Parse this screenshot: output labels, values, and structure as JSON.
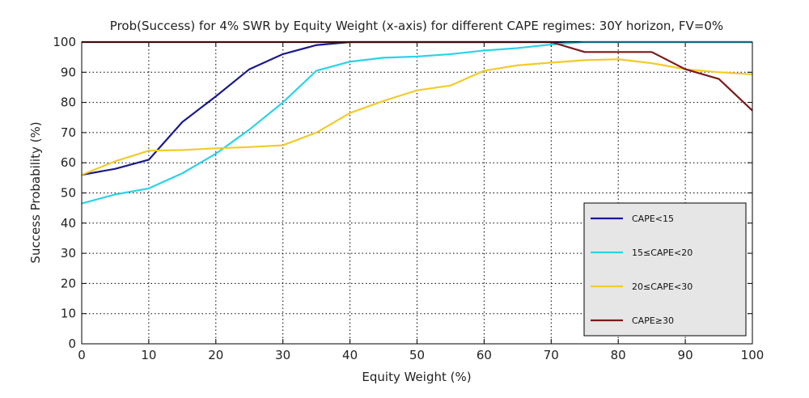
{
  "chart_data": {
    "type": "line",
    "title": "Prob(Success) for 4% SWR by Equity Weight (x-axis) for different CAPE regimes: 30Y horizon, FV=0%",
    "xlabel": "Equity Weight (%)",
    "ylabel": "Success Probability (%)",
    "xlim": [
      0,
      100
    ],
    "ylim": [
      0,
      100
    ],
    "xticks": [
      0,
      10,
      20,
      30,
      40,
      50,
      60,
      70,
      80,
      90,
      100
    ],
    "yticks": [
      0,
      10,
      20,
      30,
      40,
      50,
      60,
      70,
      80,
      90,
      100
    ],
    "grid": true,
    "legend_position": "bottom-right",
    "x": [
      0,
      5,
      10,
      15,
      20,
      25,
      30,
      35,
      40,
      45,
      50,
      55,
      60,
      65,
      70,
      75,
      80,
      85,
      90,
      95,
      100
    ],
    "series": [
      {
        "name": "CAPE<15",
        "color": "#1a1a8c",
        "values": [
          56,
          58,
          61,
          73.5,
          82,
          91,
          96,
          99,
          100,
          100,
          100,
          100,
          100,
          100,
          100,
          100,
          100,
          100,
          100,
          100,
          100
        ]
      },
      {
        "name": "15≤CAPE<20",
        "color": "#29d3e8",
        "values": [
          46.5,
          49.5,
          51.5,
          56.5,
          63,
          71,
          80,
          90.5,
          93.5,
          94.8,
          95.2,
          96,
          97.2,
          98,
          99.2,
          100,
          100,
          100,
          100,
          100,
          100
        ]
      },
      {
        "name": "20≤CAPE<30",
        "color": "#f2cb2a",
        "values": [
          56,
          60.5,
          64,
          64.2,
          64.8,
          65.2,
          65.8,
          70,
          76.5,
          80.5,
          84,
          85.6,
          90.5,
          92.3,
          93.2,
          94,
          94.3,
          93,
          91,
          90,
          89.3
        ]
      },
      {
        "name": "CAPE≥30",
        "color": "#7a1a1a",
        "values": [
          100,
          100,
          100,
          100,
          100,
          100,
          100,
          100,
          100,
          100,
          100,
          100,
          100,
          100,
          100,
          96.7,
          96.7,
          96.7,
          91,
          87.8,
          77.3
        ]
      }
    ]
  }
}
